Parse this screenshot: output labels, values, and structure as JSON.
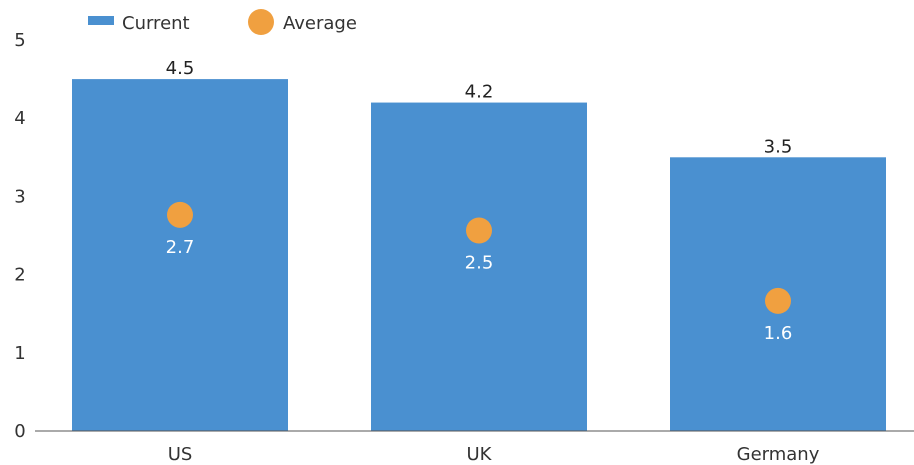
{
  "chart_data": {
    "type": "bar",
    "title": "",
    "xlabel": "",
    "ylabel": "",
    "categories": [
      "US",
      "UK",
      "Germany"
    ],
    "series": [
      {
        "name": "Current",
        "kind": "bar",
        "values": [
          4.5,
          4.2,
          3.5
        ],
        "labels": [
          "4.5",
          "4.2",
          "3.5"
        ]
      },
      {
        "name": "Average",
        "kind": "dot",
        "values": [
          2.7,
          2.5,
          1.6
        ],
        "labels": [
          "2.7",
          "2.5",
          "1.6"
        ]
      }
    ],
    "ylim": [
      0,
      5
    ],
    "yticks": [
      "0",
      "1",
      "2",
      "3",
      "4",
      "5"
    ],
    "grid": false,
    "legend_position": "top-left",
    "colors": {
      "bar": "#4a90d0",
      "dot": "#f0a040",
      "axis": "#555555"
    }
  }
}
